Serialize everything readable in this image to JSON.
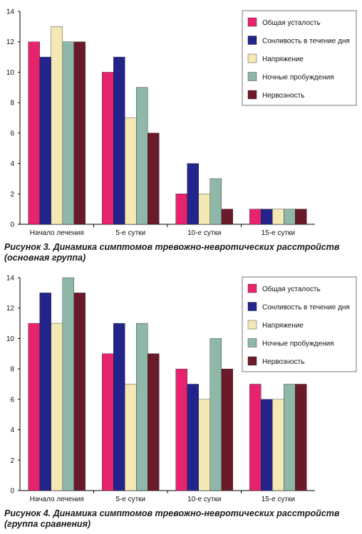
{
  "charts": [
    {
      "caption_line1": "Рисунок 3. Динамика симптомов тревожно-невротических расстройств",
      "caption_line2": "(основная группа)",
      "chart_data": {
        "type": "bar",
        "categories": [
          "Начало лечения",
          "5-е сутки",
          "10-е сутки",
          "15-е сутки"
        ],
        "ylim": [
          0,
          14
        ],
        "yticks": [
          0,
          2,
          4,
          6,
          8,
          10,
          12,
          14
        ],
        "legend_position": "top-right",
        "series": [
          {
            "name": "Общая усталость",
            "color": "#e8236e",
            "values": [
              12,
              10,
              2,
              1
            ]
          },
          {
            "name": "Сонливость в течение дня",
            "color": "#23238c",
            "values": [
              11,
              11,
              4,
              1
            ]
          },
          {
            "name": "Напряжение",
            "color": "#f4e8b4",
            "values": [
              13,
              7,
              2,
              1
            ]
          },
          {
            "name": "Ночные пробуждения",
            "color": "#8fb8a8",
            "values": [
              12,
              9,
              3,
              1
            ]
          },
          {
            "name": "Нервозность",
            "color": "#6b1a2a",
            "values": [
              12,
              6,
              1,
              1
            ]
          }
        ]
      }
    },
    {
      "caption_line1": "Рисунок 4. Динамика симптомов тревожно-невротических расстройств",
      "caption_line2": "(группа сравнения)",
      "chart_data": {
        "type": "bar",
        "categories": [
          "Начало лечения",
          "5-е сутки",
          "10-е сутки",
          "15-е сутки"
        ],
        "ylim": [
          0,
          14
        ],
        "yticks": [
          0,
          2,
          4,
          6,
          8,
          10,
          12,
          14
        ],
        "legend_position": "top-right",
        "series": [
          {
            "name": "Общая усталость",
            "color": "#e8236e",
            "values": [
              11,
              9,
              8,
              7
            ]
          },
          {
            "name": "Сонливость в течение дня",
            "color": "#23238c",
            "values": [
              13,
              11,
              7,
              6
            ]
          },
          {
            "name": "Напряжение",
            "color": "#f4e8b4",
            "values": [
              11,
              7,
              6,
              6
            ]
          },
          {
            "name": "Ночные пробуждения",
            "color": "#8fb8a8",
            "values": [
              14,
              11,
              10,
              7
            ]
          },
          {
            "name": "Нервозность",
            "color": "#6b1a2a",
            "values": [
              13,
              9,
              8,
              7
            ]
          }
        ]
      }
    }
  ]
}
